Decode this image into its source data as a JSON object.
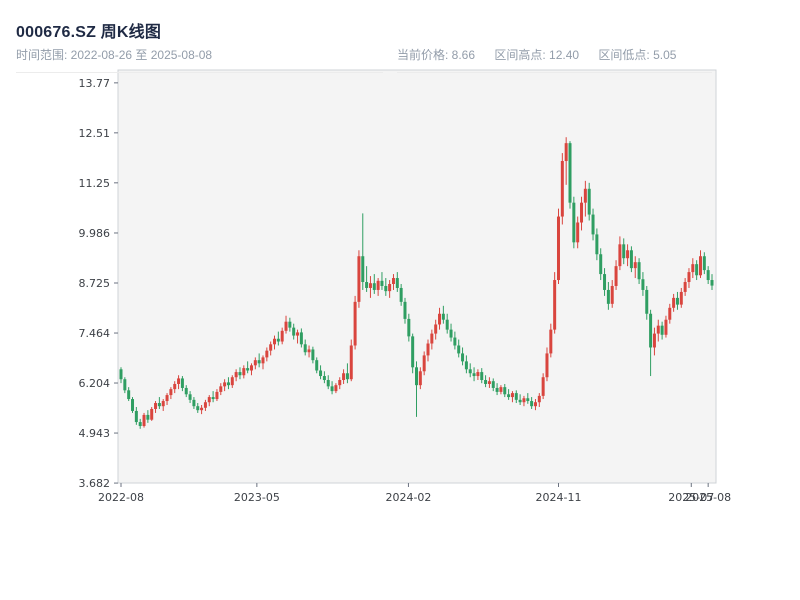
{
  "header": {
    "title": "000676.SZ 周K线图",
    "subtitle_left": "时间范围: 2022-08-26 至 2025-08-08",
    "stats": [
      {
        "text": "当前价格: 8.66"
      },
      {
        "text": "区间高点: 12.40"
      },
      {
        "text": "区间低点: 5.05"
      }
    ]
  },
  "chart_data": {
    "type": "candlestick",
    "symbol": "000676.SZ",
    "frequency": "weekly",
    "date_range": {
      "start": "2022-08-26",
      "end": "2025-08-08"
    },
    "summary": {
      "current_price": 8.66,
      "period_high": 12.4,
      "period_low": 5.05
    },
    "ylim": [
      3.684,
      14.094
    ],
    "grid": false,
    "legend": "none",
    "y_ticks": [
      {
        "value": 3.682,
        "label": "3.682"
      },
      {
        "value": 4.943,
        "label": "4.943"
      },
      {
        "value": 6.204,
        "label": "6.204"
      },
      {
        "value": 7.464,
        "label": "7.464"
      },
      {
        "value": 8.725,
        "label": "8.725"
      },
      {
        "value": 9.986,
        "label": "9.986"
      },
      {
        "value": 11.25,
        "label": "11.25"
      },
      {
        "value": 12.51,
        "label": "12.51"
      },
      {
        "value": 13.77,
        "label": "13.77"
      }
    ],
    "x_ticks": [
      {
        "week": 0,
        "label": "2022-08"
      },
      {
        "week": 35.4,
        "label": "2023-05"
      },
      {
        "week": 74.9,
        "label": "2024-02"
      },
      {
        "week": 114.0,
        "label": "2024-11"
      },
      {
        "week": 148.6,
        "label": "2025-07"
      },
      {
        "week": 153.0,
        "label": "2025-08"
      }
    ],
    "colors": {
      "up": "#d9453e",
      "down": "#2f9e62",
      "plot_bg": "#f4f4f4",
      "spine": "#cfd3d7",
      "tick": "#6b7280",
      "tick_label": "#3d4147"
    },
    "candles_format": [
      "open",
      "high",
      "low",
      "close"
    ],
    "candles": [
      [
        6.55,
        6.6,
        6.2,
        6.3
      ],
      [
        6.3,
        6.35,
        5.95,
        6.02
      ],
      [
        6.02,
        6.1,
        5.75,
        5.8
      ],
      [
        5.8,
        5.85,
        5.45,
        5.5
      ],
      [
        5.5,
        5.6,
        5.15,
        5.22
      ],
      [
        5.22,
        5.3,
        5.05,
        5.12
      ],
      [
        5.12,
        5.45,
        5.08,
        5.4
      ],
      [
        5.4,
        5.52,
        5.2,
        5.28
      ],
      [
        5.28,
        5.6,
        5.25,
        5.55
      ],
      [
        5.55,
        5.75,
        5.45,
        5.7
      ],
      [
        5.7,
        5.85,
        5.55,
        5.62
      ],
      [
        5.62,
        5.8,
        5.5,
        5.75
      ],
      [
        5.75,
        5.95,
        5.65,
        5.9
      ],
      [
        5.9,
        6.1,
        5.8,
        6.05
      ],
      [
        6.05,
        6.25,
        5.95,
        6.18
      ],
      [
        6.18,
        6.4,
        6.05,
        6.32
      ],
      [
        6.32,
        6.38,
        6.0,
        6.08
      ],
      [
        6.08,
        6.15,
        5.85,
        5.92
      ],
      [
        5.92,
        6.0,
        5.7,
        5.78
      ],
      [
        5.78,
        5.85,
        5.55,
        5.62
      ],
      [
        5.62,
        5.7,
        5.45,
        5.52
      ],
      [
        5.52,
        5.65,
        5.42,
        5.58
      ],
      [
        5.58,
        5.78,
        5.5,
        5.72
      ],
      [
        5.72,
        5.9,
        5.62,
        5.85
      ],
      [
        5.85,
        6.0,
        5.72,
        5.8
      ],
      [
        5.8,
        6.05,
        5.75,
        5.98
      ],
      [
        5.98,
        6.2,
        5.9,
        6.12
      ],
      [
        6.12,
        6.3,
        6.0,
        6.22
      ],
      [
        6.22,
        6.35,
        6.05,
        6.15
      ],
      [
        6.15,
        6.4,
        6.08,
        6.35
      ],
      [
        6.35,
        6.55,
        6.25,
        6.48
      ],
      [
        6.48,
        6.6,
        6.3,
        6.4
      ],
      [
        6.4,
        6.65,
        6.32,
        6.58
      ],
      [
        6.58,
        6.75,
        6.45,
        6.52
      ],
      [
        6.52,
        6.7,
        6.4,
        6.65
      ],
      [
        6.65,
        6.85,
        6.55,
        6.78
      ],
      [
        6.78,
        6.95,
        6.6,
        6.7
      ],
      [
        6.7,
        6.9,
        6.55,
        6.85
      ],
      [
        6.85,
        7.1,
        6.75,
        7.02
      ],
      [
        7.02,
        7.25,
        6.9,
        7.18
      ],
      [
        7.18,
        7.4,
        7.05,
        7.32
      ],
      [
        7.32,
        7.5,
        7.15,
        7.25
      ],
      [
        7.25,
        7.6,
        7.18,
        7.52
      ],
      [
        7.52,
        7.9,
        7.45,
        7.75
      ],
      [
        7.75,
        7.85,
        7.5,
        7.6
      ],
      [
        7.6,
        7.7,
        7.3,
        7.4
      ],
      [
        7.4,
        7.55,
        7.2,
        7.48
      ],
      [
        7.48,
        7.58,
        7.1,
        7.18
      ],
      [
        7.18,
        7.3,
        6.9,
        6.98
      ],
      [
        6.98,
        7.15,
        6.85,
        7.05
      ],
      [
        7.05,
        7.12,
        6.7,
        6.78
      ],
      [
        6.78,
        6.85,
        6.45,
        6.52
      ],
      [
        6.52,
        6.65,
        6.3,
        6.38
      ],
      [
        6.38,
        6.5,
        6.2,
        6.28
      ],
      [
        6.28,
        6.4,
        6.05,
        6.12
      ],
      [
        6.12,
        6.25,
        5.92,
        6.0
      ],
      [
        6.0,
        6.2,
        5.95,
        6.15
      ],
      [
        6.15,
        6.35,
        6.05,
        6.28
      ],
      [
        6.28,
        6.55,
        6.18,
        6.45
      ],
      [
        6.45,
        6.7,
        6.2,
        6.3
      ],
      [
        6.3,
        7.3,
        6.25,
        7.15
      ],
      [
        7.15,
        8.4,
        7.05,
        8.25
      ],
      [
        8.25,
        9.55,
        8.1,
        9.4
      ],
      [
        9.4,
        10.48,
        8.55,
        8.75
      ],
      [
        8.75,
        9.15,
        8.5,
        8.6
      ],
      [
        8.6,
        8.9,
        8.35,
        8.72
      ],
      [
        8.72,
        8.95,
        8.45,
        8.55
      ],
      [
        8.55,
        8.85,
        8.4,
        8.78
      ],
      [
        8.78,
        9.0,
        8.55,
        8.65
      ],
      [
        8.65,
        8.85,
        8.4,
        8.52
      ],
      [
        8.52,
        8.8,
        8.35,
        8.7
      ],
      [
        8.7,
        8.95,
        8.55,
        8.85
      ],
      [
        8.85,
        9.0,
        8.5,
        8.6
      ],
      [
        8.6,
        8.7,
        8.15,
        8.25
      ],
      [
        8.25,
        8.35,
        7.7,
        7.82
      ],
      [
        7.82,
        7.95,
        7.25,
        7.38
      ],
      [
        7.38,
        7.45,
        6.45,
        6.6
      ],
      [
        6.6,
        6.75,
        5.35,
        6.15
      ],
      [
        6.15,
        6.6,
        6.05,
        6.5
      ],
      [
        6.5,
        7.0,
        6.4,
        6.9
      ],
      [
        6.9,
        7.3,
        6.75,
        7.2
      ],
      [
        7.2,
        7.55,
        7.05,
        7.45
      ],
      [
        7.45,
        7.8,
        7.3,
        7.68
      ],
      [
        7.68,
        8.1,
        7.55,
        7.95
      ],
      [
        7.95,
        8.15,
        7.7,
        7.8
      ],
      [
        7.8,
        7.95,
        7.45,
        7.55
      ],
      [
        7.55,
        7.7,
        7.25,
        7.35
      ],
      [
        7.35,
        7.5,
        7.05,
        7.15
      ],
      [
        7.15,
        7.3,
        6.85,
        6.95
      ],
      [
        6.95,
        7.1,
        6.65,
        6.75
      ],
      [
        6.75,
        6.9,
        6.45,
        6.55
      ],
      [
        6.55,
        6.7,
        6.35,
        6.45
      ],
      [
        6.45,
        6.6,
        6.25,
        6.38
      ],
      [
        6.38,
        6.55,
        6.28,
        6.48
      ],
      [
        6.48,
        6.58,
        6.2,
        6.28
      ],
      [
        6.28,
        6.4,
        6.1,
        6.18
      ],
      [
        6.18,
        6.35,
        6.08,
        6.25
      ],
      [
        6.25,
        6.32,
        6.0,
        6.08
      ],
      [
        6.08,
        6.2,
        5.9,
        5.98
      ],
      [
        5.98,
        6.15,
        5.92,
        6.1
      ],
      [
        6.1,
        6.18,
        5.85,
        5.92
      ],
      [
        5.92,
        6.05,
        5.78,
        5.85
      ],
      [
        5.85,
        6.0,
        5.72,
        5.95
      ],
      [
        5.95,
        6.02,
        5.7,
        5.78
      ],
      [
        5.78,
        5.92,
        5.65,
        5.72
      ],
      [
        5.72,
        5.88,
        5.62,
        5.82
      ],
      [
        5.82,
        5.95,
        5.68,
        5.75
      ],
      [
        5.75,
        5.85,
        5.55,
        5.62
      ],
      [
        5.62,
        5.8,
        5.52,
        5.72
      ],
      [
        5.72,
        5.95,
        5.6,
        5.88
      ],
      [
        5.88,
        6.45,
        5.8,
        6.35
      ],
      [
        6.35,
        7.1,
        6.25,
        6.95
      ],
      [
        6.95,
        7.7,
        6.85,
        7.55
      ],
      [
        7.55,
        9.0,
        7.45,
        8.8
      ],
      [
        8.8,
        10.6,
        8.7,
        10.4
      ],
      [
        10.4,
        12.0,
        10.2,
        11.8
      ],
      [
        11.8,
        12.4,
        11.2,
        12.25
      ],
      [
        12.25,
        12.3,
        10.6,
        10.75
      ],
      [
        10.75,
        10.9,
        9.6,
        9.75
      ],
      [
        9.75,
        10.4,
        9.6,
        10.25
      ],
      [
        10.25,
        10.9,
        10.05,
        10.75
      ],
      [
        10.75,
        11.3,
        10.4,
        11.1
      ],
      [
        11.1,
        11.25,
        10.3,
        10.45
      ],
      [
        10.45,
        10.6,
        9.8,
        9.95
      ],
      [
        9.95,
        10.1,
        9.3,
        9.45
      ],
      [
        9.45,
        9.6,
        8.8,
        8.95
      ],
      [
        8.95,
        9.1,
        8.4,
        8.55
      ],
      [
        8.55,
        8.75,
        8.05,
        8.2
      ],
      [
        8.2,
        8.8,
        8.1,
        8.65
      ],
      [
        8.65,
        9.3,
        8.55,
        9.15
      ],
      [
        9.15,
        9.9,
        9.05,
        9.7
      ],
      [
        9.7,
        9.85,
        9.2,
        9.35
      ],
      [
        9.35,
        9.7,
        9.15,
        9.55
      ],
      [
        9.55,
        9.65,
        9.0,
        9.1
      ],
      [
        9.1,
        9.4,
        8.85,
        9.25
      ],
      [
        9.25,
        9.35,
        8.7,
        8.82
      ],
      [
        8.82,
        9.0,
        8.4,
        8.55
      ],
      [
        8.55,
        8.65,
        7.8,
        7.95
      ],
      [
        7.95,
        8.05,
        6.38,
        7.1
      ],
      [
        7.1,
        7.6,
        6.9,
        7.45
      ],
      [
        7.45,
        7.8,
        7.25,
        7.65
      ],
      [
        7.65,
        7.75,
        7.3,
        7.42
      ],
      [
        7.42,
        7.9,
        7.35,
        7.8
      ],
      [
        7.8,
        8.2,
        7.7,
        8.1
      ],
      [
        8.1,
        8.45,
        8.0,
        8.35
      ],
      [
        8.35,
        8.5,
        8.05,
        8.18
      ],
      [
        8.18,
        8.6,
        8.1,
        8.5
      ],
      [
        8.5,
        8.85,
        8.4,
        8.75
      ],
      [
        8.75,
        9.1,
        8.6,
        9.0
      ],
      [
        9.0,
        9.35,
        8.85,
        9.2
      ],
      [
        9.2,
        9.3,
        8.8,
        8.92
      ],
      [
        8.92,
        9.55,
        8.85,
        9.4
      ],
      [
        9.4,
        9.5,
        8.95,
        9.05
      ],
      [
        9.05,
        9.15,
        8.7,
        8.8
      ],
      [
        8.8,
        8.95,
        8.55,
        8.66
      ]
    ]
  }
}
